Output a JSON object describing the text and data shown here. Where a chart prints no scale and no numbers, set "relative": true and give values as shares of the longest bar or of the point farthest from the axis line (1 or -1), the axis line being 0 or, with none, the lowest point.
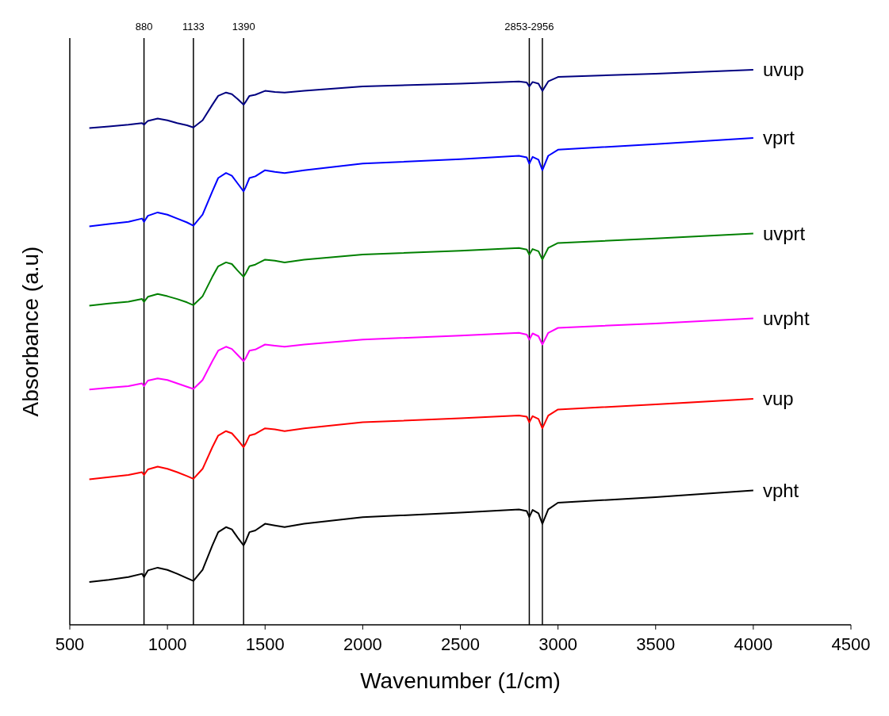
{
  "chart_data": {
    "type": "line",
    "xlabel": "Wavenumber (1/cm)",
    "ylabel": "Absorbance (a.u)",
    "relative": true,
    "x": [
      600,
      700,
      800,
      870,
      880,
      900,
      950,
      1000,
      1050,
      1100,
      1133,
      1180,
      1230,
      1260,
      1300,
      1330,
      1360,
      1390,
      1400,
      1420,
      1450,
      1500,
      1550,
      1600,
      1700,
      2000,
      2500,
      2800,
      2840,
      2853,
      2870,
      2900,
      2920,
      2950,
      3000,
      3500,
      4000
    ],
    "xlim": [
      500,
      4500
    ],
    "xticks": [
      500,
      1000,
      1500,
      2000,
      2500,
      3000,
      3500,
      4000,
      4500
    ],
    "grid": false,
    "marker": "none",
    "line_style": "solid",
    "ref_lines": [
      {
        "axis": "x",
        "value": 880,
        "label": "880",
        "color": "#000000"
      },
      {
        "axis": "x",
        "value": 1133,
        "label": "1133",
        "color": "#000000"
      },
      {
        "axis": "x",
        "value": 1390,
        "label": "1390",
        "color": "#000000"
      },
      {
        "axis": "x",
        "value": 2853,
        "label": "2853-2956",
        "color": "#000000"
      },
      {
        "axis": "x",
        "value": 2920,
        "label": null,
        "color": "#000000"
      }
    ],
    "series": [
      {
        "name": "uvup",
        "color": "#000080",
        "values": [
          0.895,
          0.898,
          0.901,
          0.904,
          0.901,
          0.908,
          0.912,
          0.909,
          0.904,
          0.9,
          0.896,
          0.909,
          0.937,
          0.953,
          0.959,
          0.956,
          0.947,
          0.937,
          0.942,
          0.953,
          0.955,
          0.962,
          0.96,
          0.959,
          0.962,
          0.97,
          0.975,
          0.979,
          0.977,
          0.97,
          0.978,
          0.975,
          0.962,
          0.979,
          0.987,
          0.993,
          1.0
        ]
      },
      {
        "name": "vprt",
        "color": "#0000ff",
        "values": [
          0.718,
          0.722,
          0.726,
          0.732,
          0.726,
          0.737,
          0.743,
          0.739,
          0.732,
          0.725,
          0.719,
          0.739,
          0.781,
          0.805,
          0.814,
          0.809,
          0.795,
          0.781,
          0.788,
          0.805,
          0.808,
          0.819,
          0.816,
          0.814,
          0.819,
          0.831,
          0.839,
          0.845,
          0.842,
          0.831,
          0.843,
          0.838,
          0.819,
          0.845,
          0.856,
          0.866,
          0.877
        ]
      },
      {
        "name": "uvprt",
        "color": "#008000",
        "values": [
          0.575,
          0.579,
          0.582,
          0.587,
          0.582,
          0.591,
          0.596,
          0.592,
          0.587,
          0.581,
          0.576,
          0.592,
          0.627,
          0.646,
          0.653,
          0.65,
          0.638,
          0.627,
          0.633,
          0.646,
          0.649,
          0.658,
          0.656,
          0.653,
          0.658,
          0.667,
          0.674,
          0.679,
          0.676,
          0.667,
          0.677,
          0.673,
          0.658,
          0.679,
          0.688,
          0.696,
          0.705
        ]
      },
      {
        "name": "uvpht",
        "color": "#ff00ff",
        "values": [
          0.424,
          0.427,
          0.43,
          0.435,
          0.43,
          0.44,
          0.444,
          0.441,
          0.435,
          0.429,
          0.425,
          0.441,
          0.475,
          0.494,
          0.501,
          0.497,
          0.486,
          0.475,
          0.48,
          0.494,
          0.496,
          0.505,
          0.503,
          0.501,
          0.505,
          0.514,
          0.521,
          0.526,
          0.523,
          0.514,
          0.525,
          0.52,
          0.505,
          0.526,
          0.535,
          0.543,
          0.552
        ]
      },
      {
        "name": "vup",
        "color": "#ff0000",
        "values": [
          0.262,
          0.266,
          0.27,
          0.275,
          0.27,
          0.28,
          0.285,
          0.281,
          0.275,
          0.268,
          0.263,
          0.281,
          0.32,
          0.341,
          0.349,
          0.345,
          0.333,
          0.32,
          0.326,
          0.341,
          0.344,
          0.354,
          0.352,
          0.349,
          0.354,
          0.365,
          0.372,
          0.377,
          0.375,
          0.365,
          0.376,
          0.371,
          0.354,
          0.377,
          0.388,
          0.397,
          0.407
        ]
      },
      {
        "name": "vpht",
        "color": "#000000",
        "values": [
          0.077,
          0.081,
          0.086,
          0.092,
          0.086,
          0.098,
          0.103,
          0.099,
          0.092,
          0.084,
          0.079,
          0.099,
          0.143,
          0.167,
          0.176,
          0.172,
          0.157,
          0.143,
          0.15,
          0.167,
          0.17,
          0.182,
          0.179,
          0.176,
          0.182,
          0.194,
          0.202,
          0.208,
          0.205,
          0.194,
          0.207,
          0.201,
          0.182,
          0.208,
          0.22,
          0.23,
          0.242
        ]
      }
    ]
  }
}
